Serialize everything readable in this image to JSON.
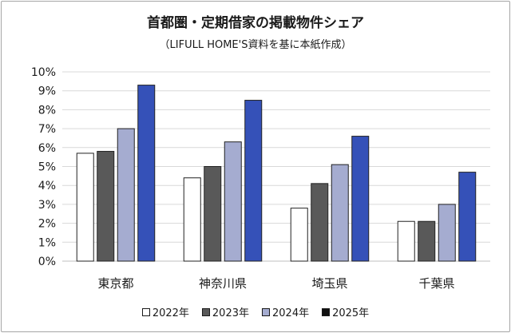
{
  "chart_data": {
    "type": "bar",
    "title": "首都圏・定期借家の掲載物件シェア",
    "subtitle": "（LIFULL HOME'S資料を基に本紙作成）",
    "categories": [
      "東京都",
      "神奈川県",
      "埼玉県",
      "千葉県"
    ],
    "series": [
      {
        "name": "2022年",
        "values": [
          5.7,
          4.4,
          2.8,
          2.1
        ],
        "color": "#ffffff",
        "legend_color": "#ffffff"
      },
      {
        "name": "2023年",
        "values": [
          5.8,
          5.0,
          4.1,
          2.1
        ],
        "color": "#595959",
        "legend_color": "#595959"
      },
      {
        "name": "2024年",
        "values": [
          7.0,
          6.3,
          5.1,
          3.0
        ],
        "color": "#a5acd0",
        "legend_color": "#a5acd0"
      },
      {
        "name": "2025年",
        "values": [
          9.3,
          8.5,
          6.6,
          4.7
        ],
        "color": "#3551b8",
        "legend_color": "#111111"
      }
    ],
    "yticks": [
      "0%",
      "1%",
      "2%",
      "3%",
      "4%",
      "5%",
      "6%",
      "7%",
      "8%",
      "9%",
      "10%"
    ],
    "ylim": [
      0,
      10
    ],
    "grid": true,
    "legend_position": "bottom",
    "bar_border_color": "#222222",
    "grid_color": "#d9d9d9"
  }
}
